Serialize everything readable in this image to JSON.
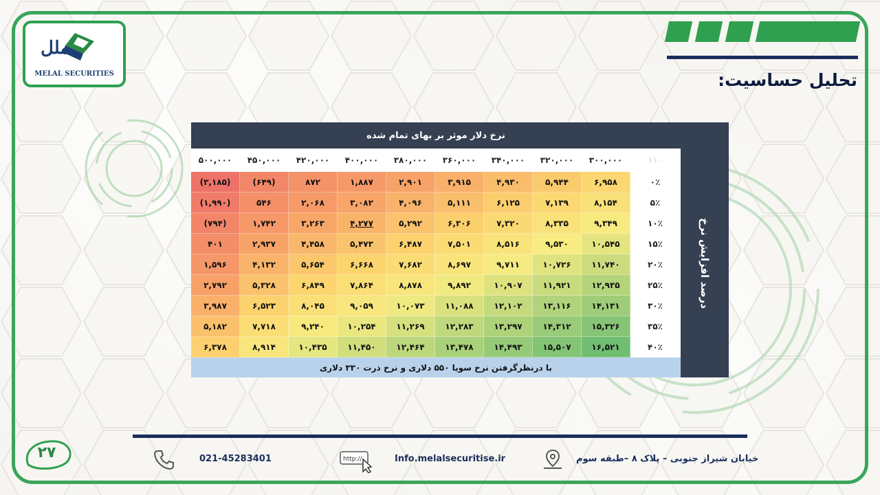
{
  "logo": {
    "text": "MELAL SECURITIES",
    "mark": "ملل کارگزاری"
  },
  "title": "تحلیل حساسیت:",
  "table": {
    "header": "نرخ دلار موثر بر بهای تمام شده",
    "side_label": "درصد افزایش نرخ",
    "corner": "۱۱۰",
    "columns": [
      "۵۰۰,۰۰۰",
      "۴۵۰,۰۰۰",
      "۴۲۰,۰۰۰",
      "۴۰۰,۰۰۰",
      "۳۸۰,۰۰۰",
      "۳۶۰,۰۰۰",
      "۳۴۰,۰۰۰",
      "۳۲۰,۰۰۰",
      "۳۰۰,۰۰۰"
    ],
    "rows": [
      {
        "label": "۰٪",
        "values": [
          "(۳,۱۸۵)",
          "(۶۴۹)",
          "۸۷۲",
          "۱,۸۸۷",
          "۲,۹۰۱",
          "۳,۹۱۵",
          "۴,۹۳۰",
          "۵,۹۴۴",
          "۶,۹۵۸"
        ]
      },
      {
        "label": "۵٪",
        "values": [
          "(۱,۹۹۰)",
          "۵۴۶",
          "۲,۰۶۸",
          "۳,۰۸۲",
          "۴,۰۹۶",
          "۵,۱۱۱",
          "۶,۱۲۵",
          "۷,۱۳۹",
          "۸,۱۵۴"
        ]
      },
      {
        "label": "۱۰٪",
        "values": [
          "(۷۹۴)",
          "۱,۷۴۲",
          "۳,۲۶۳",
          "۴,۲۷۷",
          "۵,۲۹۲",
          "۶,۳۰۶",
          "۷,۳۲۰",
          "۸,۳۳۵",
          "۹,۳۴۹"
        ]
      },
      {
        "label": "۱۵٪",
        "values": [
          "۴۰۱",
          "۲,۹۳۷",
          "۴,۴۵۸",
          "۵,۴۷۳",
          "۶,۴۸۷",
          "۷,۵۰۱",
          "۸,۵۱۶",
          "۹,۵۳۰",
          "۱۰,۵۴۵"
        ]
      },
      {
        "label": "۲۰٪",
        "values": [
          "۱,۵۹۶",
          "۴,۱۳۲",
          "۵,۶۵۴",
          "۶,۶۶۸",
          "۷,۶۸۲",
          "۸,۶۹۷",
          "۹,۷۱۱",
          "۱۰,۷۲۶",
          "۱۱,۷۴۰"
        ]
      },
      {
        "label": "۲۵٪",
        "values": [
          "۲,۷۹۲",
          "۵,۳۲۸",
          "۶,۸۴۹",
          "۷,۸۶۴",
          "۸,۸۷۸",
          "۹,۸۹۲",
          "۱۰,۹۰۷",
          "۱۱,۹۲۱",
          "۱۲,۹۳۵"
        ]
      },
      {
        "label": "۳۰٪",
        "values": [
          "۳,۹۸۷",
          "۶,۵۲۳",
          "۸,۰۴۵",
          "۹,۰۵۹",
          "۱۰,۰۷۳",
          "۱۱,۰۸۸",
          "۱۲,۱۰۲",
          "۱۳,۱۱۶",
          "۱۴,۱۳۱"
        ]
      },
      {
        "label": "۳۵٪",
        "values": [
          "۵,۱۸۲",
          "۷,۷۱۸",
          "۹,۲۴۰",
          "۱۰,۲۵۴",
          "۱۱,۲۶۹",
          "۱۲,۲۸۳",
          "۱۳,۲۹۷",
          "۱۴,۳۱۲",
          "۱۵,۳۲۶"
        ]
      },
      {
        "label": "۴۰٪",
        "values": [
          "۶,۳۷۸",
          "۸,۹۱۴",
          "۱۰,۴۳۵",
          "۱۱,۴۵۰",
          "۱۲,۴۶۴",
          "۱۳,۴۷۸",
          "۱۴,۴۹۳",
          "۱۵,۵۰۷",
          "۱۶,۵۲۱"
        ]
      }
    ],
    "footer": "با درنظرگرفتن نرخ سویا ۵۵۰ دلاری و نرخ ذرت ۳۳۰ دلاری"
  },
  "page_number": "۲۷",
  "footer": {
    "phone": "021-45283401",
    "email": "Info.melalsecuritise.ir",
    "address": "خیابان شیراز جنوبی – پلاک ۸ –طبقه سوم",
    "web_icon_text": "http://"
  },
  "colors": {
    "green": "#2fa04f",
    "navy": "#1b2e5c",
    "panel": "#364053"
  }
}
